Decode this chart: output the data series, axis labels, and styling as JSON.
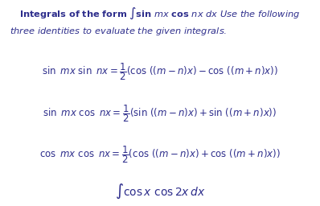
{
  "background_color": "#ffffff",
  "text_color": "#2e2e8c",
  "fig_width": 3.98,
  "fig_height": 2.56,
  "dpi": 100,
  "title_line1": "Integrals of the form",
  "title_line2": "three identities to evaluate the given integrals.",
  "eq1": "\\sin\\ \\mathit{mx}\\ \\sin\\ \\mathit{nx} = \\dfrac{1}{2}(\\cos\\,((m - n)x) - \\cos\\,((m + n)x))",
  "eq2": "\\sin\\ \\mathit{mx}\\ \\cos\\ \\mathit{nx} = \\dfrac{1}{2}(\\sin\\,((m - n)x) + \\sin\\,((m + n)x))",
  "eq3": "\\cos\\ \\mathit{mx}\\ \\cos\\ \\mathit{nx} = \\dfrac{1}{2}(\\cos\\,((m - n)x) + \\cos\\,((m + n)x))",
  "bottom": "\\int \\cos x \\cos 2x\\, dx"
}
